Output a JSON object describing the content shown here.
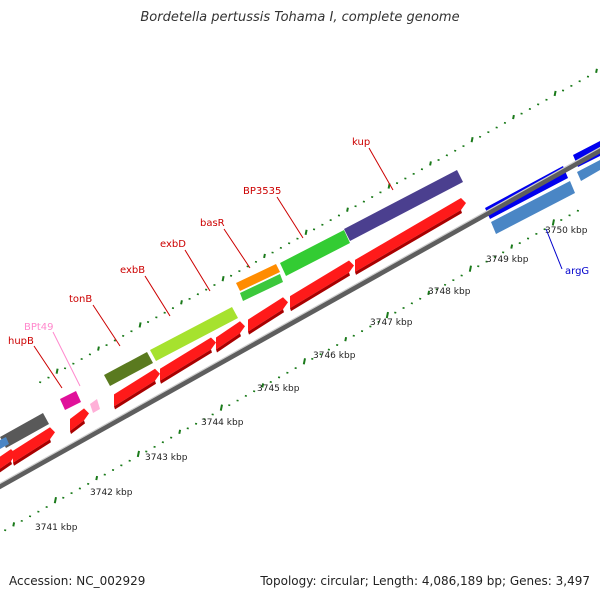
{
  "title": "Bordetella pertussis Tohama I, complete genome",
  "footer": {
    "accession": "Accession: NC_002929",
    "summary": "Topology: circular; Length: 4,086,189 bp; Genes: 3,497"
  },
  "scale_labels": [
    "3741 kbp",
    "3742 kbp",
    "3743 kbp",
    "3744 kbp",
    "3745 kbp",
    "3746 kbp",
    "3747 kbp",
    "3748 kbp",
    "3749 kbp",
    "3750 kbp"
  ],
  "genes": [
    {
      "label": "hupB",
      "color": "#cc0000"
    },
    {
      "label": "BPt49",
      "color": "#ff88cc"
    },
    {
      "label": "tonB",
      "color": "#cc0000"
    },
    {
      "label": "exbB",
      "color": "#cc0000"
    },
    {
      "label": "exbD",
      "color": "#cc0000"
    },
    {
      "label": "basR",
      "color": "#cc0000"
    },
    {
      "label": "BP3535",
      "color": "#cc0000"
    },
    {
      "label": "kup",
      "color": "#cc0000"
    },
    {
      "label": "argG",
      "color": "#0000cc"
    }
  ],
  "colors": {
    "backbone": "#777777",
    "tick": "#1a7a1a",
    "cds": "#ff1a1a",
    "cds_shade": "#a80000"
  }
}
